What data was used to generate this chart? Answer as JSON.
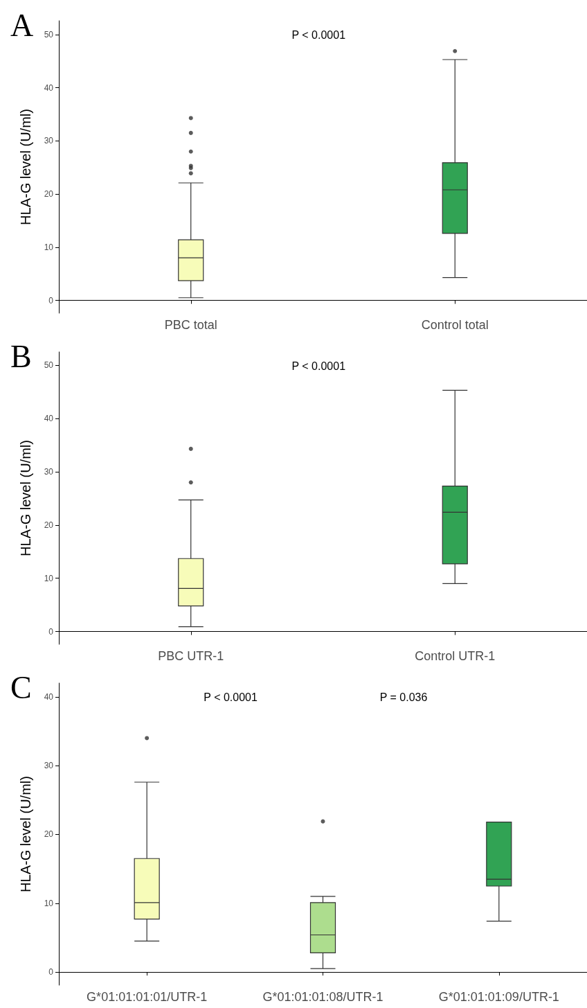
{
  "chart_data": [
    {
      "type": "box",
      "title": "A",
      "ylabel": "HLA-G level (U/ml)",
      "annotations": [
        "P < 0.0001"
      ],
      "categories": [
        "PBC total",
        "Control total"
      ],
      "colors": [
        "#f7fcb9",
        "#31a354"
      ],
      "ylim": [
        -2.4,
        52.6
      ],
      "yticks": [
        0,
        10,
        20,
        30,
        40,
        50
      ],
      "grid": false,
      "boxes": [
        {
          "low": 0.5,
          "q1": 3.7,
          "median": 8.0,
          "q3": 11.4,
          "high": 22.1,
          "outliers": [
            34.3,
            31.5,
            28.0,
            25.3,
            24.9,
            23.9
          ]
        },
        {
          "low": 4.3,
          "q1": 12.6,
          "median": 20.8,
          "q3": 25.9,
          "high": 45.3,
          "outliers": [
            46.9
          ]
        }
      ]
    },
    {
      "type": "box",
      "title": "B",
      "ylabel": "HLA-G level (U/ml)",
      "annotations": [
        "P < 0.0001"
      ],
      "categories": [
        "PBC UTR-1",
        "Control UTR-1"
      ],
      "colors": [
        "#f7fcb9",
        "#31a354"
      ],
      "ylim": [
        -2.4,
        52.5
      ],
      "yticks": [
        0,
        10,
        20,
        30,
        40,
        50
      ],
      "grid": false,
      "boxes": [
        {
          "low": 0.9,
          "q1": 4.8,
          "median": 8.1,
          "q3": 13.7,
          "high": 24.7,
          "outliers": [
            34.3,
            28.0
          ]
        },
        {
          "low": 9.0,
          "q1": 12.7,
          "median": 22.4,
          "q3": 27.3,
          "high": 45.3
        }
      ]
    },
    {
      "type": "box",
      "title": "C",
      "ylabel": "HLA-G level (U/ml)",
      "annotations": [
        "P < 0.0001",
        "P = 0.036"
      ],
      "categories": [
        "G*01:01:01:01/UTR-1",
        "G*01:01:01:08/UTR-1",
        "G*01:01:01:09/UTR-1"
      ],
      "colors": [
        "#f7fcb9",
        "#addd8e",
        "#31a354"
      ],
      "ylim": [
        -1.9,
        42.0
      ],
      "yticks": [
        0,
        10,
        20,
        30,
        40
      ],
      "grid": false,
      "boxes": [
        {
          "low": 4.5,
          "q1": 7.7,
          "median": 10.1,
          "q3": 16.5,
          "high": 27.6,
          "outliers": [
            34.0
          ]
        },
        {
          "low": 0.5,
          "q1": 2.8,
          "median": 5.4,
          "q3": 10.1,
          "high": 11.0,
          "outliers": [
            21.9
          ]
        },
        {
          "low": 7.4,
          "q1": 12.5,
          "median": 13.5,
          "q3": 21.8,
          "high": 21.8
        }
      ]
    }
  ]
}
